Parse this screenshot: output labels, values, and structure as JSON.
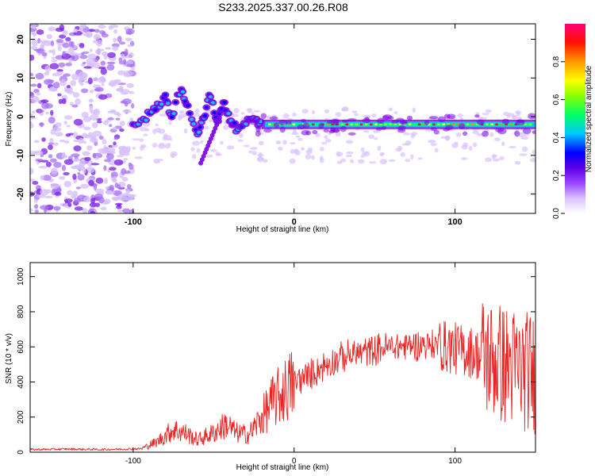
{
  "chart_data": [
    {
      "type": "heatmap",
      "title": "S233.2025.337.00.26.R08",
      "xlabel": "Height of straight line (km)",
      "ylabel": "Frequency (Hz)",
      "xlim": [
        -164,
        150
      ],
      "ylim": [
        -25,
        24
      ],
      "xticks": [
        -100,
        0,
        100
      ],
      "yticks": [
        20,
        10,
        0,
        -10,
        -20
      ],
      "colorbar": {
        "label": "Normalized spectral amplitude",
        "range": [
          0,
          1
        ],
        "ticks": [
          "0.0",
          "0.2",
          "0.4",
          "0.6",
          "0.8"
        ],
        "tick_values": [
          0.0,
          0.2,
          0.4,
          0.6,
          0.8
        ],
        "colors": [
          "#ffffff",
          "#b58cff",
          "#7a00e6",
          "#0000ff",
          "#00c8ff",
          "#00ff66",
          "#a0ff00",
          "#ffff00",
          "#ff8800",
          "#ff0000",
          "#ff0066"
        ]
      },
      "features": {
        "noise_region_x": [
          -164,
          -100
        ],
        "main_line_freq": -2,
        "main_line_x": [
          -20,
          150
        ]
      }
    },
    {
      "type": "line",
      "title": "",
      "xlabel": "Height of straight line (km)",
      "ylabel": "SNR (10 * v/v)",
      "xlim": [
        -164,
        150
      ],
      "ylim": [
        0,
        1080
      ],
      "xticks": [
        -100,
        0,
        100
      ],
      "yticks": [
        0,
        200,
        400,
        600,
        800,
        1000
      ],
      "color": "#ee2222",
      "envelope": [
        [
          -164,
          15
        ],
        [
          -140,
          18
        ],
        [
          -120,
          15
        ],
        [
          -95,
          20
        ],
        [
          -85,
          60
        ],
        [
          -75,
          130
        ],
        [
          -68,
          110
        ],
        [
          -60,
          70
        ],
        [
          -50,
          110
        ],
        [
          -42,
          160
        ],
        [
          -36,
          110
        ],
        [
          -28,
          100
        ],
        [
          -20,
          200
        ],
        [
          -14,
          280
        ],
        [
          -8,
          330
        ],
        [
          0,
          400
        ],
        [
          10,
          440
        ],
        [
          20,
          500
        ],
        [
          30,
          540
        ],
        [
          40,
          565
        ],
        [
          50,
          585
        ],
        [
          60,
          600
        ],
        [
          70,
          605
        ],
        [
          80,
          615
        ],
        [
          90,
          610
        ],
        [
          100,
          590
        ],
        [
          110,
          570
        ],
        [
          120,
          540
        ],
        [
          130,
          500
        ],
        [
          140,
          470
        ],
        [
          150,
          450
        ]
      ]
    }
  ]
}
